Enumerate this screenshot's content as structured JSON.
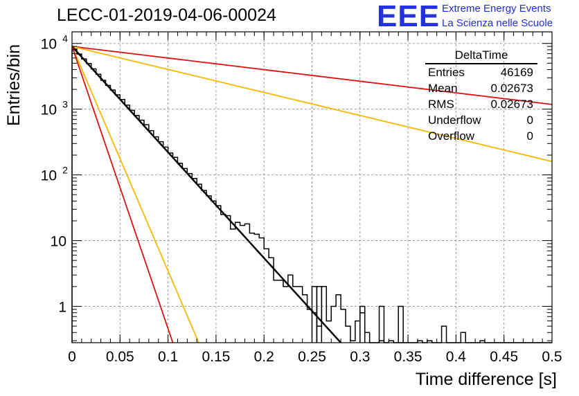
{
  "header": {
    "title": "LECC-01-2019-04-06-00024",
    "logo_text": "EEE",
    "logo_line1": "Extreme Energy Events",
    "logo_line2": "La Scienza nelle Scuole"
  },
  "stats": {
    "title": "DeltaTime",
    "rows": [
      {
        "label": "Entries",
        "value": "46169"
      },
      {
        "label": "Mean",
        "value": "0.02673"
      },
      {
        "label": "RMS",
        "value": "0.02673"
      },
      {
        "label": "Underflow",
        "value": "0"
      },
      {
        "label": "Overflow",
        "value": "0"
      }
    ]
  },
  "colors": {
    "histogram": "#000000",
    "red": "#dd1111",
    "orange": "#f5b800",
    "fit": "#000000",
    "grid": "#9a9a9a"
  },
  "chart_data": {
    "type": "line",
    "title": "LECC-01-2019-04-06-00024",
    "xlabel": "Time difference [s]",
    "ylabel": "Entries/bin",
    "log_y": true,
    "grid": true,
    "xlim": [
      0,
      0.5
    ],
    "ylim": [
      0.28,
      15000
    ],
    "x_ticks": [
      "0",
      "0.05",
      "0.1",
      "0.15",
      "0.2",
      "0.25",
      "0.3",
      "0.35",
      "0.4",
      "0.45",
      "0.5"
    ],
    "x_tick_values": [
      0,
      0.05,
      0.1,
      0.15,
      0.2,
      0.25,
      0.3,
      0.35,
      0.4,
      0.45,
      0.5
    ],
    "y_ticks": [
      {
        "value": 1,
        "base": "1",
        "exp": ""
      },
      {
        "value": 10,
        "base": "10",
        "exp": ""
      },
      {
        "value": 100,
        "base": "10",
        "exp": "2"
      },
      {
        "value": 1000,
        "base": "10",
        "exp": "3"
      },
      {
        "value": 10000,
        "base": "10",
        "exp": "4"
      }
    ],
    "legend": "top-right statistics box",
    "histogram": {
      "bin_width": 0.005,
      "bin_low": 0,
      "values": [
        8200,
        6900,
        5800,
        4950,
        4100,
        3400,
        2750,
        2300,
        1950,
        1650,
        1400,
        1150,
        960,
        800,
        680,
        580,
        470,
        380,
        320,
        265,
        215,
        185,
        150,
        125,
        105,
        88,
        72,
        58,
        48,
        40,
        34,
        25,
        24,
        15,
        19,
        17,
        18,
        13,
        12.5,
        11,
        7.5,
        5.5,
        2.5,
        2.5,
        2,
        3,
        2,
        2,
        1.5,
        0.9,
        0.8,
        0.5,
        2,
        0.6,
        1.0,
        1.5,
        0.9,
        0.5,
        0.3,
        0.6,
        0.8,
        0.4,
        0.2,
        0.2,
        0.3,
        0.2,
        0.3,
        0.2,
        0.2,
        0.1,
        0.2,
        0.2,
        0.3,
        0.2,
        0.3,
        0.2,
        0.2,
        0.5,
        0.2,
        0.1,
        0.2,
        0.4,
        0.2,
        0.1,
        0.1,
        0.3,
        0.2,
        0.1,
        0.2,
        0.1,
        0.1,
        0.2,
        0.1,
        0.2,
        0.1,
        0.1,
        0.1,
        0.2,
        0.1,
        0.1
      ],
      "highlights": [
        {
          "x": 0.25,
          "x2": 0.255,
          "value": 2
        },
        {
          "x": 0.255,
          "x2": 0.26,
          "value": 2
        },
        {
          "x": 0.3,
          "x2": 0.305,
          "value": 1
        },
        {
          "x": 0.32,
          "x2": 0.325,
          "value": 1
        },
        {
          "x": 0.34,
          "x2": 0.345,
          "value": 1
        }
      ]
    },
    "series": [
      {
        "color": "red",
        "x": [
          0,
          0.5
        ],
        "y": [
          9000,
          1180
        ]
      },
      {
        "color": "orange",
        "x": [
          0,
          0.5
        ],
        "y": [
          9000,
          160
        ]
      },
      {
        "color": "fit",
        "x": [
          0,
          0.28
        ],
        "y": [
          9000,
          0.28
        ]
      },
      {
        "color": "orange",
        "x": [
          0,
          0.132
        ],
        "y": [
          9000,
          0.28
        ]
      },
      {
        "color": "red",
        "x": [
          0,
          0.105
        ],
        "y": [
          9000,
          0.28
        ]
      }
    ]
  }
}
